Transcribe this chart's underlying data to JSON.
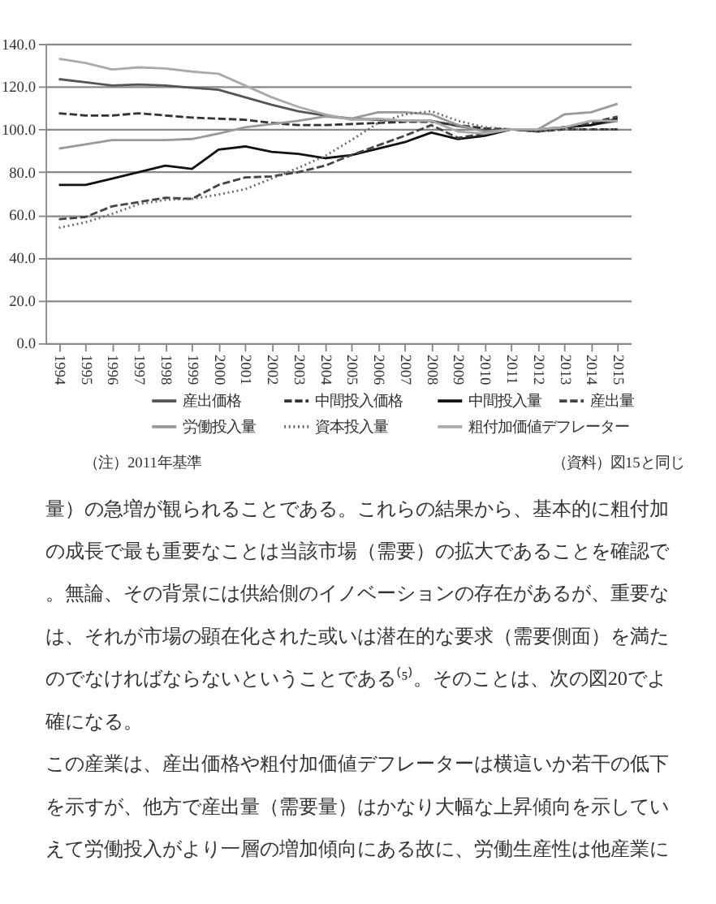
{
  "chart_data": {
    "type": "line",
    "categories": [
      "1994",
      "1995",
      "1996",
      "1997",
      "1998",
      "1999",
      "2000",
      "2001",
      "2002",
      "2003",
      "2004",
      "2005",
      "2006",
      "2007",
      "2008",
      "2009",
      "2010",
      "2011",
      "2012",
      "2013",
      "2014",
      "2015"
    ],
    "series": [
      {
        "name": "産出価格",
        "color": "#555555",
        "line_style": "solid",
        "values": [
          123.5,
          122,
          120.5,
          121,
          120.5,
          119.5,
          118.5,
          115,
          111.5,
          108.5,
          106.5,
          105,
          104.5,
          104,
          104,
          101.5,
          99.5,
          100,
          99.5,
          101,
          102,
          104
        ]
      },
      {
        "name": "中間投入価格",
        "color": "#333333",
        "line_style": "dashed",
        "values": [
          107.5,
          106.5,
          106.5,
          107.5,
          106.5,
          105.5,
          105,
          104.5,
          103,
          102,
          102,
          102.5,
          103,
          103.5,
          103.5,
          102,
          100.5,
          100,
          99,
          100,
          100,
          100
        ]
      },
      {
        "name": "中間投入量",
        "color": "#111111",
        "line_style": "solid",
        "values": [
          74,
          74,
          77,
          80,
          83,
          81.5,
          90.5,
          92,
          89.5,
          88.5,
          86.5,
          88,
          91,
          94,
          98.5,
          95.5,
          97,
          100,
          100,
          101,
          102,
          105
        ]
      },
      {
        "name": "産出量",
        "color": "#444444",
        "line_style": "dashed",
        "values": [
          58,
          59,
          64,
          66,
          68,
          67.5,
          74,
          77.5,
          78,
          80,
          83,
          88,
          92.5,
          97,
          102,
          96,
          98,
          100,
          99,
          101,
          103,
          106
        ]
      },
      {
        "name": "労働投入量",
        "color": "#999999",
        "line_style": "solid",
        "values": [
          91,
          93,
          95,
          95,
          95,
          95.5,
          98,
          101,
          102.5,
          104,
          106,
          105,
          108,
          108,
          107,
          102,
          99,
          100,
          100,
          107,
          108,
          112
        ]
      },
      {
        "name": "資本投入量",
        "color": "#666666",
        "line_style": "dotted",
        "values": [
          54,
          56.5,
          60.5,
          65,
          67,
          67.5,
          69.5,
          72,
          77,
          82,
          87.5,
          95,
          103,
          107,
          108.5,
          104,
          101,
          100,
          99,
          100,
          100,
          100
        ]
      },
      {
        "name": "粗付加価値デフレーター",
        "color": "#aaaaaa",
        "line_style": "solid",
        "values": [
          133,
          131,
          128,
          129,
          128.5,
          127,
          126,
          120.5,
          115,
          110.5,
          107,
          104.5,
          105,
          104,
          104,
          99,
          98,
          100,
          100,
          101,
          104,
          104
        ]
      }
    ],
    "ylim": [
      0,
      140
    ],
    "yticks": [
      {
        "value": 0,
        "label": "0.0"
      },
      {
        "value": 20,
        "label": "20.0"
      },
      {
        "value": 40,
        "label": "40.0"
      },
      {
        "value": 60,
        "label": "60.0"
      },
      {
        "value": 80,
        "label": "80.0"
      },
      {
        "value": 100,
        "label": "100.0"
      },
      {
        "value": 120,
        "label": "120.0"
      },
      {
        "value": 140,
        "label": "140.0"
      }
    ],
    "grid": "y",
    "legend": "bottom",
    "annotations": [
      "（注）2011年基準",
      "（資料）図15と同じ",
      "量）の急増が観られることである。これらの結果から、基本的に粗付加",
      "の成長で最も重要なことは当該市場（需要）の拡大であることを確認で",
      "。無論、その背景には供給側のイノベーションの存在があるが、重要な",
      "は、それが市場の顕在化された或いは潜在的な要求（需要側面）を満た",
      "のでなければならないということである⁽⁵⁾。そのことは、次の図20でよ",
      "確になる。",
      "この産業は、産出価格や粗付加価値デフレーターは横這いか若干の低下",
      "を示すが、他方で産出量（需要量）はかなり大幅な上昇傾向を示してい",
      "えて労働投入がより一層の増加傾向にある故に、労働生産性は他産業に"
    ]
  }
}
